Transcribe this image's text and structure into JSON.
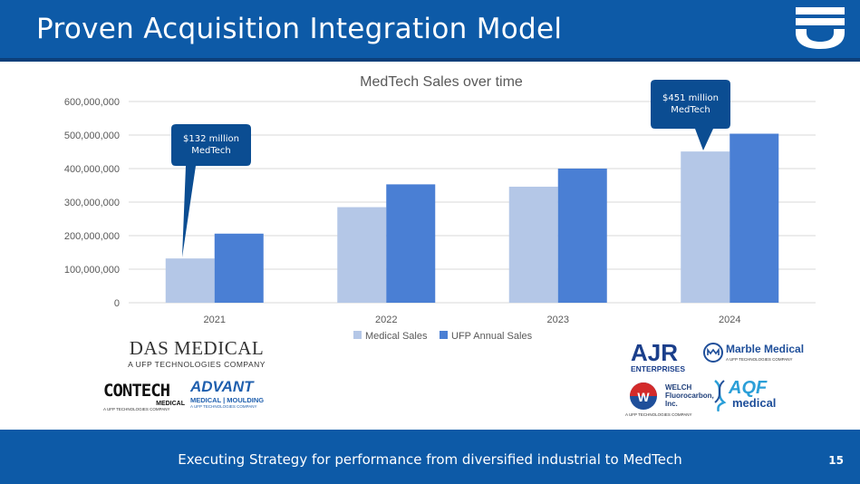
{
  "slide": {
    "title": "Proven Acquisition Integration Model",
    "footer": "Executing Strategy for performance from diversified industrial to MedTech",
    "page_number": "15"
  },
  "colors": {
    "header_blue": "#0d5aa7",
    "medical_sales": "#b4c7e7",
    "ufp_sales": "#4a7fd4",
    "callout": "#0b4d92"
  },
  "callouts": [
    {
      "line1": "$132 million",
      "line2": "MedTech"
    },
    {
      "line1": "$451 million",
      "line2": "MedTech"
    }
  ],
  "logos": {
    "das_medical": {
      "name": "DAS MEDICAL",
      "sub": "A UFP TECHNOLOGIES COMPANY"
    },
    "contech": {
      "name": "CONTECH",
      "sub1": "MEDICAL",
      "sub2": "A UFP TECHNOLOGIES COMPANY"
    },
    "advant": {
      "name": "ADVANT",
      "sub1": "MEDICAL | MOULDING",
      "sub2": "A UFP TECHNOLOGIES COMPANY"
    },
    "ajr": {
      "name": "AJR",
      "sub": "ENTERPRISES"
    },
    "marble": {
      "name": "Marble Medical",
      "sub": "A UFP TECHNOLOGIES COMPANY"
    },
    "welch": {
      "line1": "WELCH",
      "line2": "Fluorocarbon,",
      "line3": "Inc.",
      "sub": "A UFP TECHNOLOGIES COMPANY"
    },
    "aqf": {
      "name": "AQF",
      "sub": "medical"
    }
  },
  "chart_data": {
    "type": "bar",
    "title": "MedTech Sales over time",
    "categories": [
      "2021",
      "2022",
      "2023",
      "2024"
    ],
    "series": [
      {
        "name": "Medical Sales",
        "values": [
          132000000,
          285000000,
          346000000,
          451000000
        ]
      },
      {
        "name": "UFP Annual Sales",
        "values": [
          206000000,
          353000000,
          400000000,
          504000000
        ]
      }
    ],
    "ylim": [
      0,
      600000000
    ],
    "yticks": [
      "0",
      "100,000,000",
      "200,000,000",
      "300,000,000",
      "400,000,000",
      "500,000,000",
      "600,000,000"
    ],
    "grid": true,
    "legend": "bottom"
  }
}
